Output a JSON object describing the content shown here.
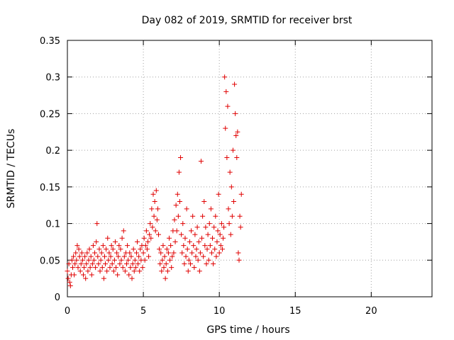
{
  "chart_data": {
    "type": "scatter",
    "title": "Day 082 of 2019, SRMTID for receiver brst",
    "xlabel": "GPS time / hours",
    "ylabel": "SRMTID / TECUs",
    "xlim": [
      0,
      24
    ],
    "ylim": [
      0,
      0.35
    ],
    "x_ticks": [
      0,
      5,
      10,
      15,
      20
    ],
    "y_ticks": [
      0,
      0.05,
      0.1,
      0.15,
      0.2,
      0.25,
      0.3,
      0.35
    ],
    "x_tick_labels": [
      "0",
      "5",
      "10",
      "15",
      "20"
    ],
    "y_tick_labels": [
      "0",
      "0.05",
      "0.1",
      "0.15",
      "0.2",
      "0.25",
      "0.3",
      "0.35"
    ],
    "grid": true,
    "legend": "none",
    "marker": "plus",
    "marker_color": "#e00000",
    "series": [
      {
        "points": [
          [
            0.0,
            0.035
          ],
          [
            0.05,
            0.025
          ],
          [
            0.1,
            0.045
          ],
          [
            0.15,
            0.02
          ],
          [
            0.2,
            0.015
          ],
          [
            0.25,
            0.03
          ],
          [
            0.3,
            0.05
          ],
          [
            0.35,
            0.04
          ],
          [
            0.4,
            0.055
          ],
          [
            0.45,
            0.03
          ],
          [
            0.5,
            0.045
          ],
          [
            0.55,
            0.06
          ],
          [
            0.6,
            0.05
          ],
          [
            0.65,
            0.07
          ],
          [
            0.7,
            0.04
          ],
          [
            0.75,
            0.065
          ],
          [
            0.8,
            0.055
          ],
          [
            0.85,
            0.035
          ],
          [
            0.9,
            0.045
          ],
          [
            0.95,
            0.06
          ],
          [
            1.0,
            0.05
          ],
          [
            1.05,
            0.03
          ],
          [
            1.1,
            0.04
          ],
          [
            1.15,
            0.055
          ],
          [
            1.2,
            0.025
          ],
          [
            1.25,
            0.045
          ],
          [
            1.3,
            0.06
          ],
          [
            1.35,
            0.035
          ],
          [
            1.4,
            0.05
          ],
          [
            1.45,
            0.065
          ],
          [
            1.5,
            0.04
          ],
          [
            1.55,
            0.055
          ],
          [
            1.6,
            0.03
          ],
          [
            1.65,
            0.045
          ],
          [
            1.7,
            0.07
          ],
          [
            1.75,
            0.05
          ],
          [
            1.8,
            0.06
          ],
          [
            1.85,
            0.04
          ],
          [
            1.9,
            0.075
          ],
          [
            1.95,
            0.1
          ],
          [
            2.0,
            0.055
          ],
          [
            2.05,
            0.045
          ],
          [
            2.1,
            0.065
          ],
          [
            2.15,
            0.035
          ],
          [
            2.2,
            0.05
          ],
          [
            2.25,
            0.06
          ],
          [
            2.3,
            0.04
          ],
          [
            2.35,
            0.07
          ],
          [
            2.4,
            0.025
          ],
          [
            2.45,
            0.055
          ],
          [
            2.5,
            0.045
          ],
          [
            2.55,
            0.065
          ],
          [
            2.6,
            0.035
          ],
          [
            2.65,
            0.08
          ],
          [
            2.7,
            0.05
          ],
          [
            2.75,
            0.06
          ],
          [
            2.8,
            0.04
          ],
          [
            2.85,
            0.055
          ],
          [
            2.9,
            0.07
          ],
          [
            2.95,
            0.045
          ],
          [
            3.0,
            0.065
          ],
          [
            3.05,
            0.035
          ],
          [
            3.1,
            0.05
          ],
          [
            3.15,
            0.075
          ],
          [
            3.2,
            0.04
          ],
          [
            3.25,
            0.06
          ],
          [
            3.3,
            0.03
          ],
          [
            3.35,
            0.055
          ],
          [
            3.4,
            0.07
          ],
          [
            3.45,
            0.045
          ],
          [
            3.5,
            0.065
          ],
          [
            3.55,
            0.05
          ],
          [
            3.6,
            0.08
          ],
          [
            3.65,
            0.04
          ],
          [
            3.7,
            0.09
          ],
          [
            3.75,
            0.055
          ],
          [
            3.8,
            0.035
          ],
          [
            3.85,
            0.06
          ],
          [
            3.9,
            0.045
          ],
          [
            3.95,
            0.07
          ],
          [
            4.0,
            0.05
          ],
          [
            4.05,
            0.03
          ],
          [
            4.1,
            0.06
          ],
          [
            4.15,
            0.04
          ],
          [
            4.2,
            0.055
          ],
          [
            4.25,
            0.025
          ],
          [
            4.3,
            0.045
          ],
          [
            4.35,
            0.065
          ],
          [
            4.4,
            0.035
          ],
          [
            4.45,
            0.05
          ],
          [
            4.5,
            0.04
          ],
          [
            4.55,
            0.06
          ],
          [
            4.6,
            0.075
          ],
          [
            4.65,
            0.045
          ],
          [
            4.7,
            0.055
          ],
          [
            4.75,
            0.035
          ],
          [
            4.8,
            0.065
          ],
          [
            4.85,
            0.05
          ],
          [
            4.9,
            0.07
          ],
          [
            4.95,
            0.04
          ],
          [
            5.0,
            0.06
          ],
          [
            5.05,
            0.08
          ],
          [
            5.1,
            0.05
          ],
          [
            5.15,
            0.07
          ],
          [
            5.2,
            0.09
          ],
          [
            5.25,
            0.065
          ],
          [
            5.3,
            0.075
          ],
          [
            5.35,
            0.055
          ],
          [
            5.4,
            0.085
          ],
          [
            5.45,
            0.1
          ],
          [
            5.5,
            0.08
          ],
          [
            5.55,
            0.12
          ],
          [
            5.6,
            0.095
          ],
          [
            5.65,
            0.14
          ],
          [
            5.7,
            0.11
          ],
          [
            5.75,
            0.13
          ],
          [
            5.8,
            0.09
          ],
          [
            5.85,
            0.145
          ],
          [
            5.9,
            0.105
          ],
          [
            5.95,
            0.12
          ],
          [
            6.0,
            0.085
          ],
          [
            6.05,
            0.065
          ],
          [
            6.1,
            0.045
          ],
          [
            6.15,
            0.06
          ],
          [
            6.2,
            0.035
          ],
          [
            6.25,
            0.05
          ],
          [
            6.3,
            0.07
          ],
          [
            6.35,
            0.04
          ],
          [
            6.4,
            0.055
          ],
          [
            6.45,
            0.025
          ],
          [
            6.5,
            0.045
          ],
          [
            6.55,
            0.065
          ],
          [
            6.6,
            0.035
          ],
          [
            6.65,
            0.06
          ],
          [
            6.7,
            0.08
          ],
          [
            6.75,
            0.05
          ],
          [
            6.8,
            0.07
          ],
          [
            6.85,
            0.04
          ],
          [
            6.9,
            0.055
          ],
          [
            6.95,
            0.09
          ],
          [
            7.0,
            0.06
          ],
          [
            7.05,
            0.105
          ],
          [
            7.1,
            0.075
          ],
          [
            7.15,
            0.125
          ],
          [
            7.2,
            0.09
          ],
          [
            7.25,
            0.14
          ],
          [
            7.3,
            0.11
          ],
          [
            7.35,
            0.17
          ],
          [
            7.4,
            0.13
          ],
          [
            7.45,
            0.19
          ],
          [
            7.5,
            0.085
          ],
          [
            7.55,
            0.06
          ],
          [
            7.6,
            0.1
          ],
          [
            7.65,
            0.07
          ],
          [
            7.7,
            0.045
          ],
          [
            7.75,
            0.08
          ],
          [
            7.8,
            0.055
          ],
          [
            7.85,
            0.12
          ],
          [
            7.9,
            0.065
          ],
          [
            7.95,
            0.035
          ],
          [
            8.0,
            0.05
          ],
          [
            8.05,
            0.075
          ],
          [
            8.1,
            0.045
          ],
          [
            8.15,
            0.09
          ],
          [
            8.2,
            0.06
          ],
          [
            8.25,
            0.11
          ],
          [
            8.3,
            0.07
          ],
          [
            8.35,
            0.04
          ],
          [
            8.4,
            0.085
          ],
          [
            8.45,
            0.055
          ],
          [
            8.5,
            0.065
          ],
          [
            8.55,
            0.095
          ],
          [
            8.6,
            0.05
          ],
          [
            8.65,
            0.075
          ],
          [
            8.7,
            0.035
          ],
          [
            8.75,
            0.06
          ],
          [
            8.8,
            0.185
          ],
          [
            8.85,
            0.08
          ],
          [
            8.9,
            0.11
          ],
          [
            8.95,
            0.055
          ],
          [
            9.0,
            0.13
          ],
          [
            9.05,
            0.07
          ],
          [
            9.1,
            0.095
          ],
          [
            9.15,
            0.045
          ],
          [
            9.2,
            0.065
          ],
          [
            9.25,
            0.085
          ],
          [
            9.3,
            0.05
          ],
          [
            9.35,
            0.1
          ],
          [
            9.4,
            0.07
          ],
          [
            9.45,
            0.12
          ],
          [
            9.5,
            0.06
          ],
          [
            9.55,
            0.08
          ],
          [
            9.6,
            0.045
          ],
          [
            9.65,
            0.095
          ],
          [
            9.7,
            0.065
          ],
          [
            9.75,
            0.11
          ],
          [
            9.8,
            0.055
          ],
          [
            9.85,
            0.075
          ],
          [
            9.9,
            0.09
          ],
          [
            9.95,
            0.14
          ],
          [
            10.0,
            0.06
          ],
          [
            10.05,
            0.085
          ],
          [
            10.1,
            0.07
          ],
          [
            10.15,
            0.1
          ],
          [
            10.2,
            0.065
          ],
          [
            10.25,
            0.08
          ],
          [
            10.3,
            0.095
          ],
          [
            10.35,
            0.3
          ],
          [
            10.4,
            0.23
          ],
          [
            10.45,
            0.28
          ],
          [
            10.5,
            0.19
          ],
          [
            10.55,
            0.26
          ],
          [
            10.6,
            0.12
          ],
          [
            10.65,
            0.1
          ],
          [
            10.7,
            0.17
          ],
          [
            10.75,
            0.085
          ],
          [
            10.8,
            0.15
          ],
          [
            10.85,
            0.11
          ],
          [
            10.9,
            0.2
          ],
          [
            10.95,
            0.13
          ],
          [
            11.0,
            0.29
          ],
          [
            11.05,
            0.25
          ],
          [
            11.1,
            0.22
          ],
          [
            11.15,
            0.19
          ],
          [
            11.2,
            0.225
          ],
          [
            11.25,
            0.06
          ],
          [
            11.3,
            0.05
          ],
          [
            11.35,
            0.11
          ],
          [
            11.4,
            0.095
          ],
          [
            11.45,
            0.14
          ]
        ]
      }
    ]
  }
}
